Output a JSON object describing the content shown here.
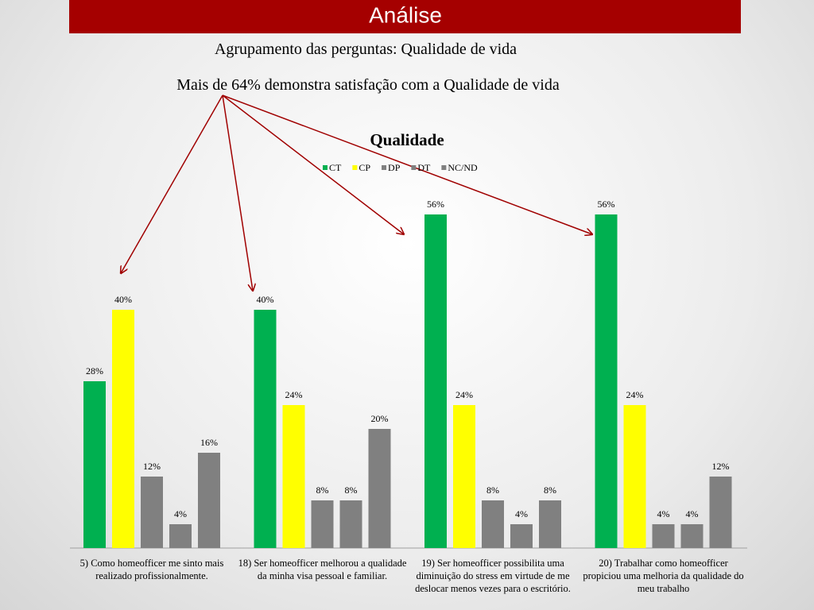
{
  "header": {
    "title": "Análise"
  },
  "text_lines": [
    "Agrupamento das perguntas: Qualidade de vida",
    "Mais de 64% demonstra satisfação com a Qualidade de vida"
  ],
  "chart_data": {
    "type": "bar",
    "title": "Qualidade",
    "categories": [
      "5) Como homeofficer me sinto mais realizado profissionalmente.",
      "18) Ser homeofficer melhorou a qualidade da minha visa pessoal e familiar.",
      "19) Ser homeofficer possibilita uma diminuição do stress em virtude de me deslocar menos vezes para o escritório.",
      "20) Trabalhar como homeofficer propiciou uma melhoria da qualidade do meu trabalho"
    ],
    "series": [
      {
        "name": "CT",
        "color": "#00b050",
        "values": [
          28,
          40,
          56,
          56
        ],
        "value_labels": [
          "28%",
          "40%",
          "56%",
          "56%"
        ]
      },
      {
        "name": "CP",
        "color": "#ffff00",
        "values": [
          40,
          24,
          24,
          24
        ],
        "value_labels": [
          "40%",
          "24%",
          "24%",
          "24%"
        ]
      },
      {
        "name": "DP",
        "color": "#808080",
        "values": [
          12,
          8,
          8,
          4
        ],
        "value_labels": [
          "12%",
          "8%",
          "8%",
          "4%"
        ]
      },
      {
        "name": "DT",
        "color": "#808080",
        "values": [
          4,
          8,
          4,
          4
        ],
        "value_labels": [
          "4%",
          "8%",
          "4%",
          "4%"
        ]
      },
      {
        "name": "NC/ND",
        "color": "#808080",
        "values": [
          16,
          20,
          8,
          12
        ],
        "value_labels": [
          "16%",
          "20%",
          "8%",
          "12%"
        ]
      }
    ],
    "ylim": [
      0,
      60
    ]
  }
}
